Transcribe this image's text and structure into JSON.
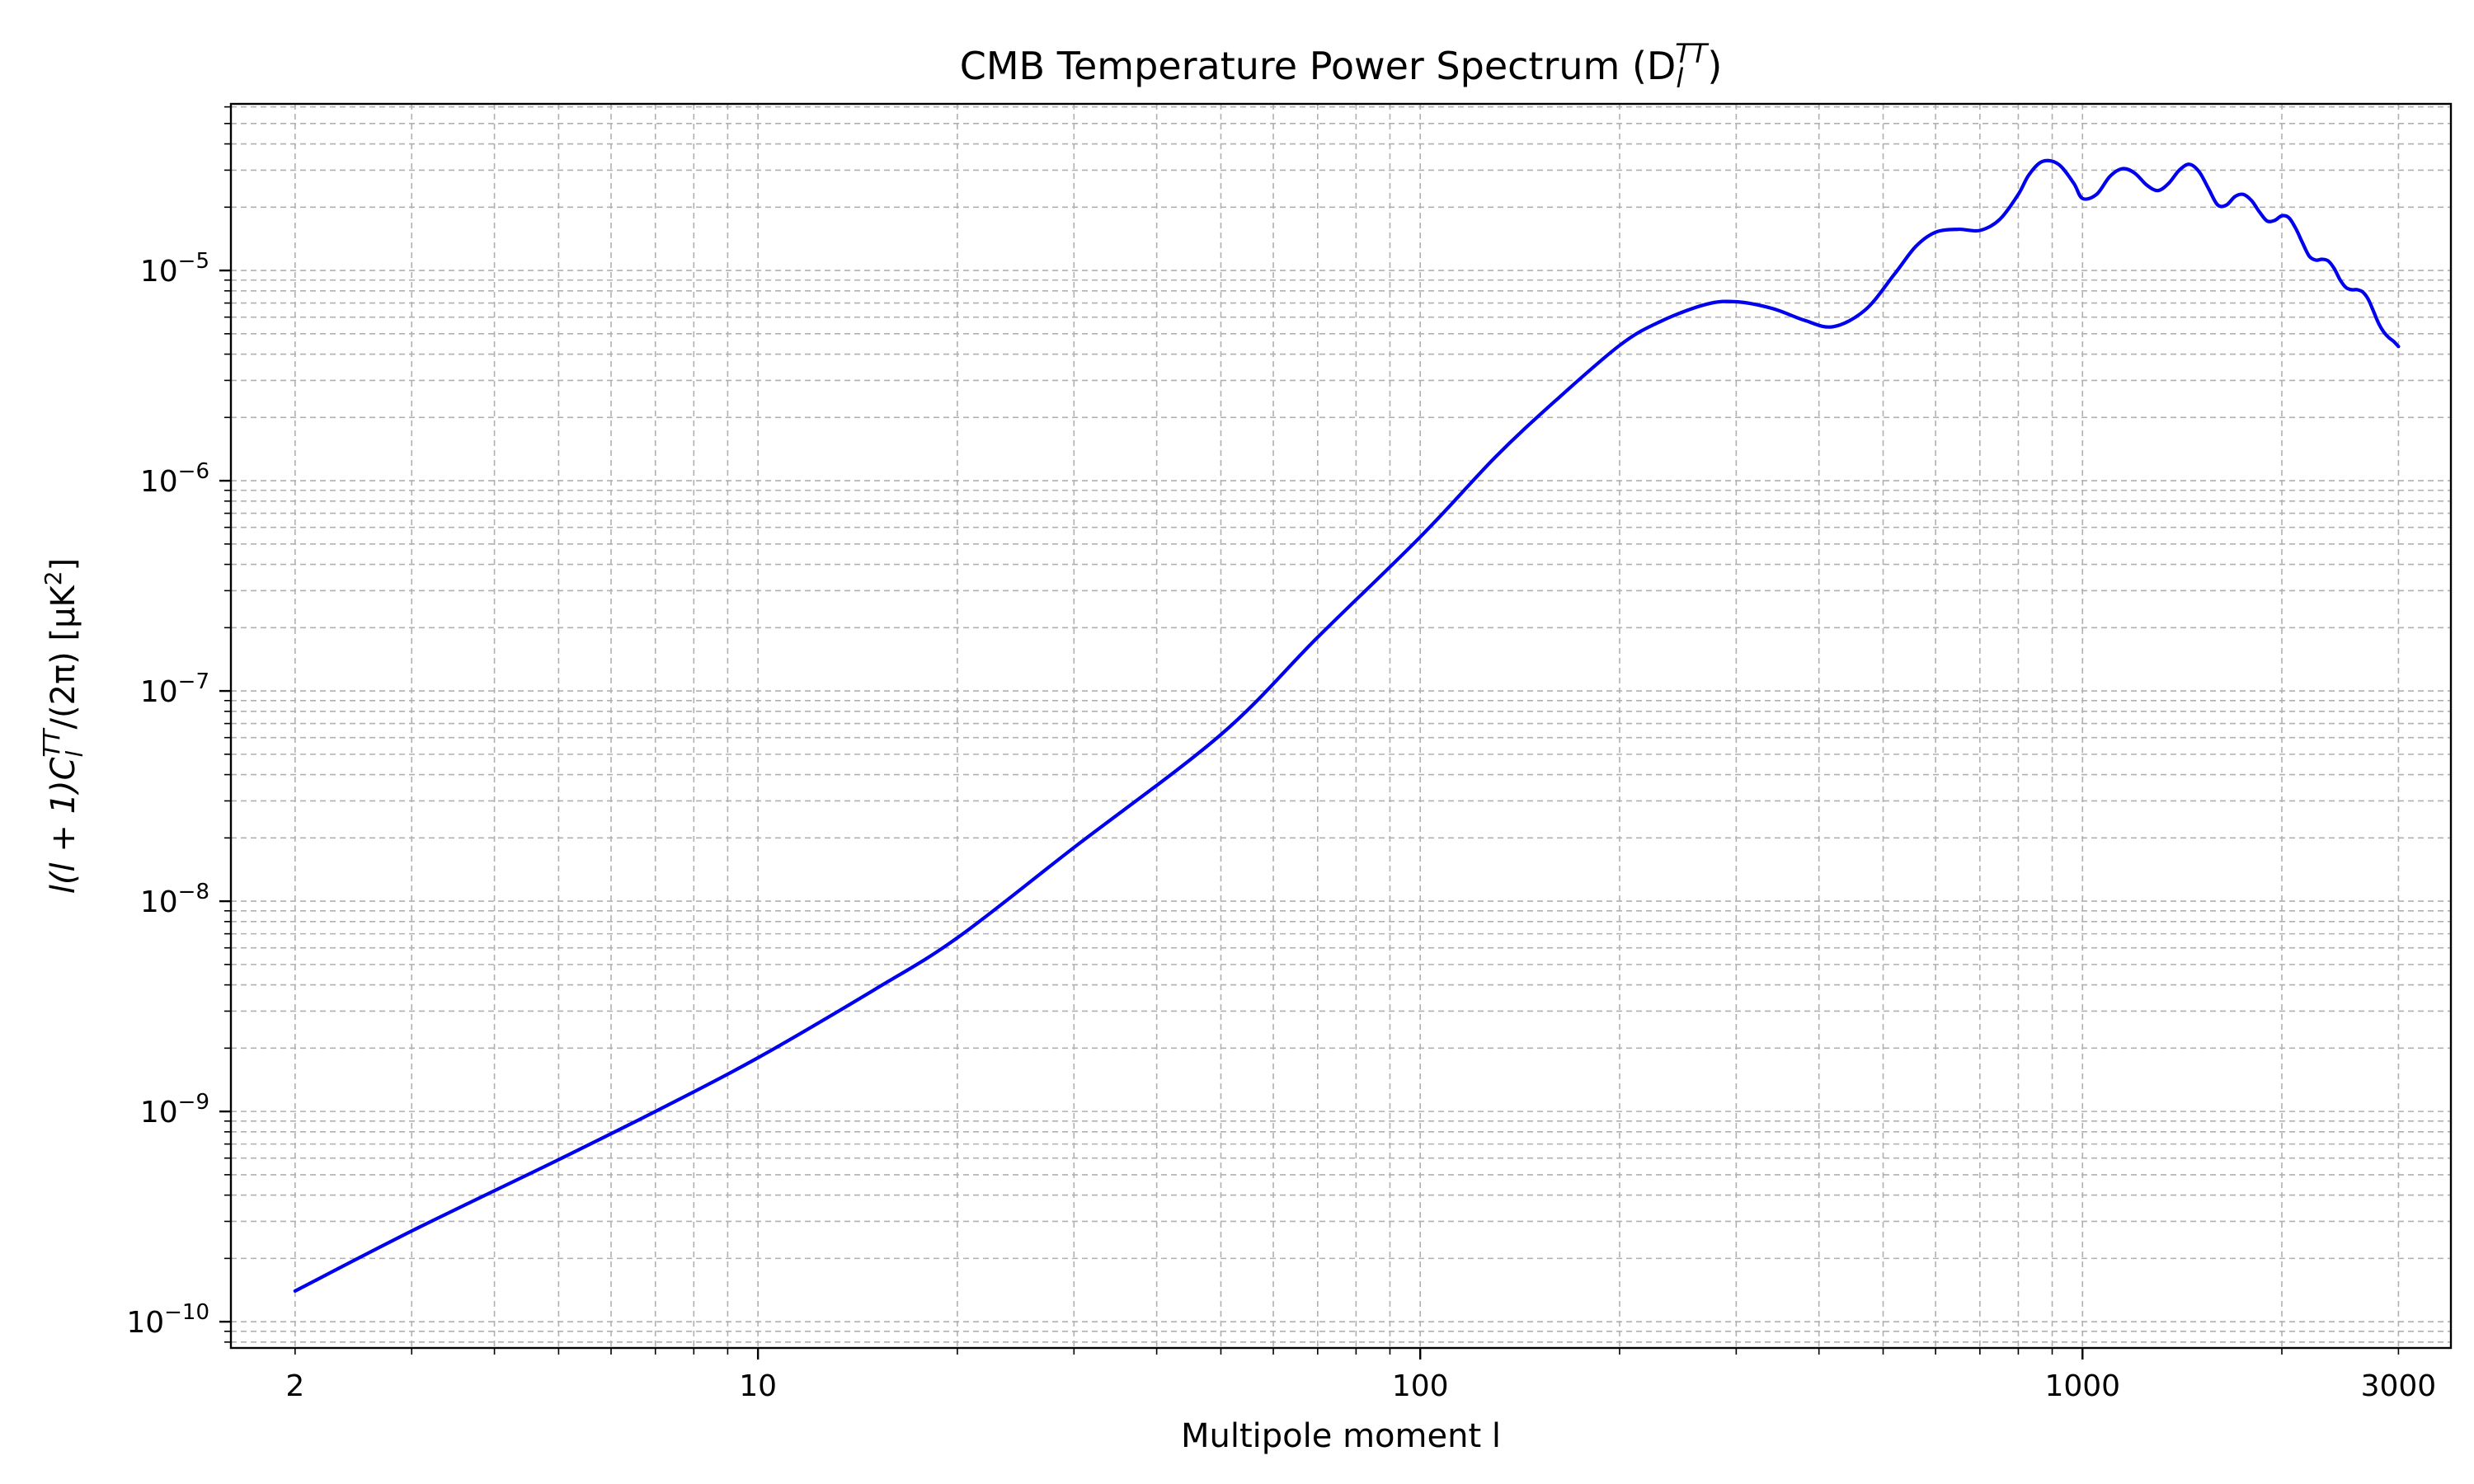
{
  "chart_data": {
    "type": "line",
    "title": "CMB Temperature Power Spectrum (D",
    "title_sub": "l",
    "title_sup": "TT",
    "title_close": ")",
    "xlabel": "Multipole moment l",
    "ylabel_parts": [
      "l(l + 1)C",
      "l",
      "TT",
      "/(2π) [μK",
      "2",
      "]"
    ],
    "xscale": "log",
    "yscale": "log",
    "xlim": [
      1.6,
      3600
    ],
    "ylim": [
      7.5e-11,
      6.2e-05
    ],
    "grid": true,
    "x_ticks": [
      {
        "value": 2,
        "label": "2"
      },
      {
        "value": 10,
        "label": "10"
      },
      {
        "value": 100,
        "label": "100"
      },
      {
        "value": 1000,
        "label": "1000"
      },
      {
        "value": 3000,
        "label": "3000"
      }
    ],
    "y_ticks": [
      {
        "exp": -10,
        "base": "10",
        "sup": "−10"
      },
      {
        "exp": -9,
        "base": "10",
        "sup": "−9"
      },
      {
        "exp": -8,
        "base": "10",
        "sup": "−8"
      },
      {
        "exp": -7,
        "base": "10",
        "sup": "−7"
      },
      {
        "exp": -6,
        "base": "10",
        "sup": "−6"
      },
      {
        "exp": -5,
        "base": "10",
        "sup": "−5"
      }
    ],
    "series": [
      {
        "color": "#0000ee",
        "x": [
          2,
          3,
          5,
          7,
          10,
          15,
          20,
          30,
          50,
          70,
          100,
          130,
          160,
          200,
          230,
          270,
          300,
          340,
          380,
          420,
          470,
          520,
          560,
          600,
          650,
          700,
          750,
          800,
          830,
          870,
          920,
          970,
          1000,
          1050,
          1100,
          1150,
          1200,
          1250,
          1300,
          1350,
          1400,
          1450,
          1500,
          1550,
          1600,
          1650,
          1700,
          1750,
          1800,
          1850,
          1900,
          1950,
          2000,
          2050,
          2100,
          2150,
          2200,
          2250,
          2300,
          2350,
          2400,
          2450,
          2500,
          2550,
          2600,
          2650,
          2700,
          2750,
          2800,
          2850,
          2900,
          2950,
          3000
        ],
        "y": [
          1.4e-10,
          2.7e-10,
          5.9e-10,
          1e-09,
          1.8e-09,
          3.8e-09,
          6.7e-09,
          1.8e-08,
          6.2e-08,
          1.8e-07,
          5.4e-07,
          1.3e-06,
          2.4e-06,
          4.4e-06,
          5.7e-06,
          6.9e-06,
          7.1e-06,
          6.6e-06,
          5.8e-06,
          5.4e-06,
          6.5e-06,
          9.6e-06,
          1.3e-05,
          1.52e-05,
          1.57e-05,
          1.55e-05,
          1.75e-05,
          2.3e-05,
          2.85e-05,
          3.3e-05,
          3.2e-05,
          2.6e-05,
          2.2e-05,
          2.3e-05,
          2.8e-05,
          3.05e-05,
          2.9e-05,
          2.55e-05,
          2.4e-05,
          2.6e-05,
          3e-05,
          3.2e-05,
          2.95e-05,
          2.45e-05,
          2.05e-05,
          2.05e-05,
          2.25e-05,
          2.3e-05,
          2.15e-05,
          1.9e-05,
          1.72e-05,
          1.73e-05,
          1.82e-05,
          1.78e-05,
          1.58e-05,
          1.35e-05,
          1.17e-05,
          1.12e-05,
          1.13e-05,
          1.11e-05,
          1.02e-05,
          9e-06,
          8.3e-06,
          8.1e-06,
          8.1e-06,
          7.9e-06,
          7.3e-06,
          6.4e-06,
          5.6e-06,
          5.1e-06,
          4.8e-06,
          4.6e-06,
          4.35e-06
        ]
      }
    ]
  }
}
